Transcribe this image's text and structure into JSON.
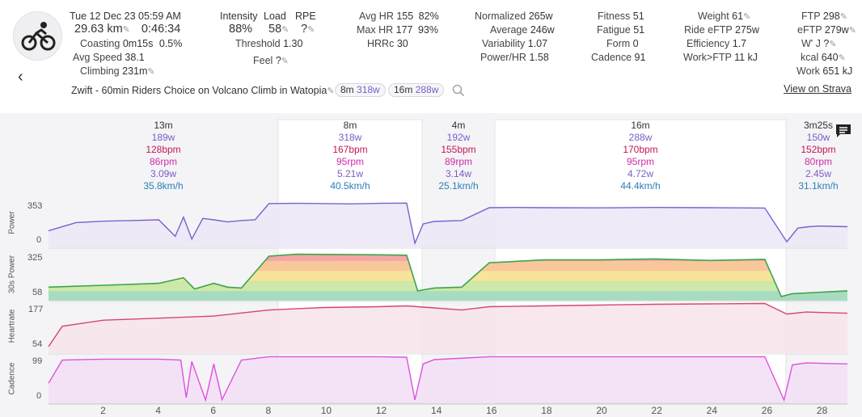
{
  "activity": {
    "date": "Tue 12 Dec 23",
    "time": "05:59 AM",
    "distance": "29.63 km",
    "duration": "0:46:34",
    "coasting_label": "Coasting",
    "coasting_value": "0m15s",
    "coasting_pct": "0.5%",
    "avg_speed_label": "Avg Speed",
    "avg_speed_value": "38.1",
    "climbing_label": "Climbing",
    "climbing_value": "231m",
    "name": "Zwift - 60min Riders Choice on Volcano Climb in Watopia",
    "tilde": "~"
  },
  "intensity": {
    "label": "Intensity",
    "value": "88%"
  },
  "load": {
    "label": "Load",
    "value": "58"
  },
  "rpe": {
    "label": "RPE",
    "value": "?"
  },
  "threshold": {
    "label": "Threshold",
    "value": "1.30"
  },
  "feel": {
    "label": "Feel",
    "value": "?"
  },
  "hr": {
    "avg_label": "Avg HR",
    "avg_value": "155",
    "avg_pct": "82%",
    "max_label": "Max HR",
    "max_value": "177",
    "max_pct": "93%",
    "hrrc_label": "HRRc",
    "hrrc_value": "30"
  },
  "power": {
    "normalized_label": "Normalized",
    "normalized_value": "265w",
    "average_label": "Average",
    "average_value": "246w",
    "variability_label": "Variability",
    "variability_value": "1.07",
    "powerhr_label": "Power/HR",
    "powerhr_value": "1.58"
  },
  "fitness": {
    "fitness_label": "Fitness",
    "fitness_value": "51",
    "fatigue_label": "Fatigue",
    "fatigue_value": "51",
    "form_label": "Form",
    "form_value": "0",
    "cadence_label": "Cadence",
    "cadence_value": "91"
  },
  "weight": {
    "weight_label": "Weight",
    "weight_value": "61",
    "ride_eftp_label": "Ride eFTP",
    "ride_eftp_value": "275w",
    "efficiency_label": "Efficiency",
    "efficiency_value": "1.7",
    "workftp_label": "Work>FTP",
    "workftp_value": "11 kJ"
  },
  "ftp": {
    "ftp_label": "FTP",
    "ftp_value": "298",
    "eftp_label": "eFTP",
    "eftp_value": "279w",
    "wj_label": "W' J",
    "wj_value": "?",
    "kcal_label": "kcal",
    "kcal_value": "640",
    "work_label": "Work",
    "work_value": "651 kJ"
  },
  "pills": [
    {
      "dur": "8m",
      "power": "318w"
    },
    {
      "dur": "16m",
      "power": "288w"
    }
  ],
  "view_on_strava": "View on Strava",
  "segments": [
    {
      "dur": "13m",
      "power": "189w",
      "hr": "128bpm",
      "cad": "86rpm",
      "wkg": "3.09w",
      "speed": "35.8km/h"
    },
    {
      "dur": "8m",
      "power": "318w",
      "hr": "167bpm",
      "cad": "95rpm",
      "wkg": "5.21w",
      "speed": "40.5km/h"
    },
    {
      "dur": "4m",
      "power": "192w",
      "hr": "155bpm",
      "cad": "89rpm",
      "wkg": "3.14w",
      "speed": "25.1km/h"
    },
    {
      "dur": "16m",
      "power": "288w",
      "hr": "170bpm",
      "cad": "95rpm",
      "wkg": "4.72w",
      "speed": "44.4km/h"
    },
    {
      "dur": "3m25s",
      "power": "150w",
      "hr": "152bpm",
      "cad": "80rpm",
      "wkg": "2.45w",
      "speed": "31.1km/h"
    }
  ],
  "axes": {
    "power": {
      "label": "Power",
      "max": "353",
      "min": "0"
    },
    "power30": {
      "label": "30s Power",
      "max": "325",
      "min": "58"
    },
    "hr": {
      "label": "Heartrate",
      "max": "177",
      "min": "54"
    },
    "cadence": {
      "label": "Cadence",
      "max": "99",
      "min": "0"
    },
    "x_ticks": [
      "2",
      "4",
      "6",
      "8",
      "10",
      "12",
      "14",
      "16",
      "18",
      "20",
      "22",
      "24",
      "26",
      "28"
    ]
  },
  "colors": {
    "power_line": "#7d5fcf",
    "power_fill": "#ece8f6",
    "hr_line": "#d6466f",
    "hr_fill": "#f7e4ea",
    "cad_line": "#e04fe0",
    "cad_fill": "#f3e0f6",
    "zone_green": "#3aa54a",
    "zone_orange": "#f0a040"
  },
  "chart_data": [
    {
      "type": "line",
      "name": "Power",
      "xlabel": "",
      "ylabel": "Power",
      "ylim": [
        0,
        353
      ],
      "x": [
        0,
        1,
        2,
        3,
        4,
        4.6,
        4.9,
        5.2,
        5.6,
        6,
        6.5,
        7,
        7.5,
        8,
        9,
        10,
        11,
        12,
        13,
        13.3,
        13.6,
        14,
        15,
        16,
        17,
        18,
        20,
        22,
        24,
        26,
        26.8,
        27.2,
        27.6,
        28,
        29
      ],
      "values": [
        120,
        180,
        190,
        195,
        200,
        80,
        220,
        60,
        210,
        200,
        185,
        195,
        200,
        318,
        320,
        318,
        316,
        320,
        322,
        30,
        170,
        188,
        195,
        288,
        290,
        288,
        287,
        290,
        288,
        286,
        40,
        140,
        150,
        155,
        150
      ]
    },
    {
      "type": "area",
      "name": "30s Power",
      "ylabel": "30s Power",
      "ylim": [
        58,
        325
      ],
      "x": [
        0,
        2,
        4,
        4.9,
        5.3,
        6,
        6.5,
        7,
        8,
        9,
        12,
        13,
        13.4,
        14,
        15,
        16,
        18,
        20,
        22,
        24,
        26,
        26.6,
        27,
        29
      ],
      "values": [
        130,
        140,
        150,
        180,
        120,
        150,
        130,
        125,
        295,
        305,
        302,
        300,
        110,
        125,
        130,
        260,
        275,
        275,
        280,
        272,
        278,
        80,
        95,
        110
      ]
    },
    {
      "type": "line",
      "name": "Heartrate",
      "ylabel": "Heartrate",
      "ylim": [
        54,
        177
      ],
      "x": [
        0,
        0.5,
        2,
        4,
        6,
        8,
        10,
        12,
        13,
        14,
        15,
        16,
        18,
        20,
        22,
        24,
        26,
        26.8,
        27.5,
        29
      ],
      "values": [
        70,
        120,
        135,
        140,
        145,
        160,
        166,
        168,
        170,
        165,
        160,
        168,
        170,
        172,
        174,
        175,
        176,
        150,
        155,
        152
      ]
    },
    {
      "type": "line",
      "name": "Cadence",
      "ylabel": "Cadence",
      "ylim": [
        0,
        99
      ],
      "x": [
        0,
        0.5,
        2,
        4,
        4.8,
        5,
        5.2,
        5.7,
        6,
        6.3,
        7,
        8,
        10,
        12,
        13,
        13.3,
        13.6,
        14,
        16,
        18,
        20,
        22,
        24,
        26,
        26.7,
        27,
        27.5,
        29
      ],
      "values": [
        40,
        88,
        90,
        90,
        88,
        10,
        85,
        5,
        80,
        6,
        88,
        95,
        95,
        95,
        94,
        5,
        80,
        89,
        95,
        95,
        95,
        95,
        95,
        95,
        5,
        78,
        82,
        80
      ]
    }
  ]
}
